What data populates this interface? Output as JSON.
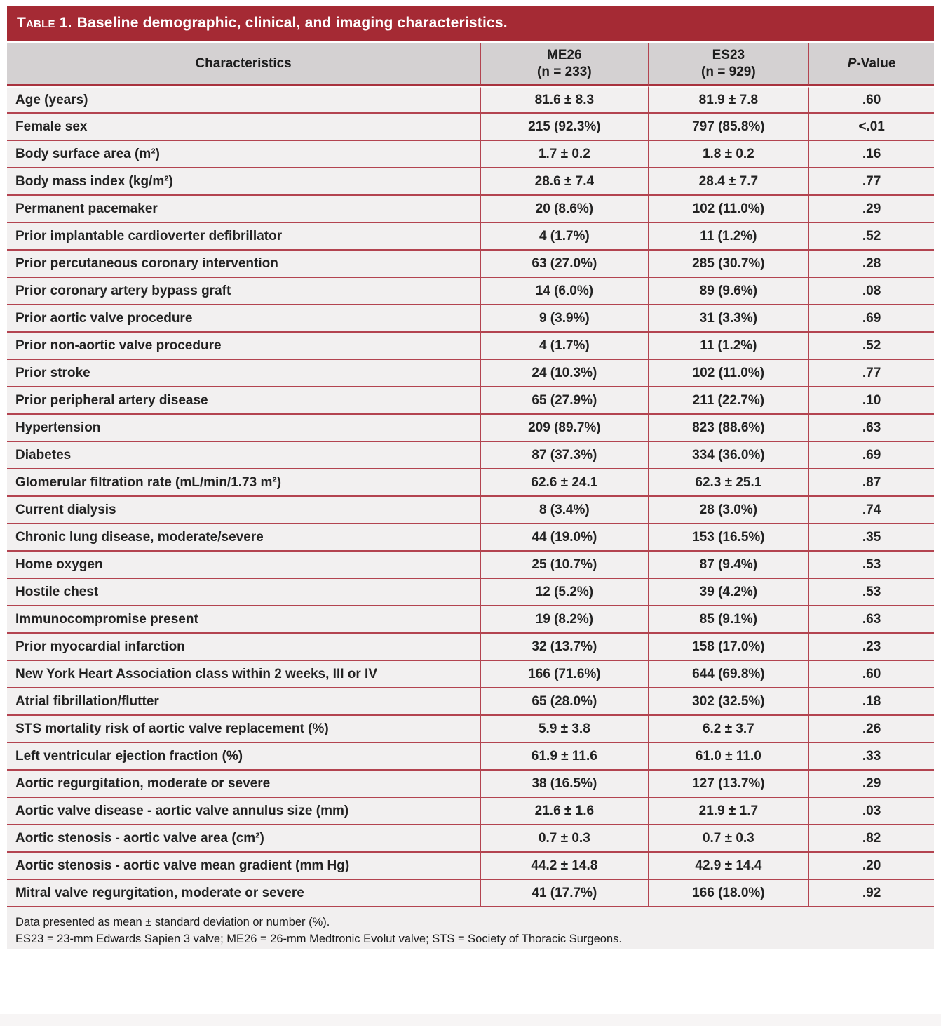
{
  "title": {
    "label": "Table 1.",
    "text": "Baseline demographic, clinical, and imaging characteristics."
  },
  "table": {
    "col_characteristics": "Characteristics",
    "col_me26_line1": "ME26",
    "col_me26_line2": "(n = 233)",
    "col_es23_line1": "ES23",
    "col_es23_line2": "(n = 929)",
    "col_p_italic": "P",
    "col_p_rest": "-Value",
    "rows": [
      {
        "label": "Age (years)",
        "me26": "81.6 ± 8.3",
        "es23": "81.9 ± 7.8",
        "p": ".60"
      },
      {
        "label": "Female sex",
        "me26": "215 (92.3%)",
        "es23": "797 (85.8%)",
        "p": "<.01"
      },
      {
        "label": "Body surface area (m²)",
        "me26": "1.7 ± 0.2",
        "es23": "1.8 ± 0.2",
        "p": ".16"
      },
      {
        "label": "Body mass index (kg/m²)",
        "me26": "28.6 ± 7.4",
        "es23": "28.4 ± 7.7",
        "p": ".77"
      },
      {
        "label": "Permanent pacemaker",
        "me26": "20 (8.6%)",
        "es23": "102 (11.0%)",
        "p": ".29"
      },
      {
        "label": "Prior implantable cardioverter defibrillator",
        "me26": "4 (1.7%)",
        "es23": "11 (1.2%)",
        "p": ".52"
      },
      {
        "label": "Prior percutaneous coronary intervention",
        "me26": "63 (27.0%)",
        "es23": "285 (30.7%)",
        "p": ".28"
      },
      {
        "label": "Prior coronary artery bypass graft",
        "me26": "14 (6.0%)",
        "es23": "89 (9.6%)",
        "p": ".08"
      },
      {
        "label": "Prior aortic valve procedure",
        "me26": "9 (3.9%)",
        "es23": "31 (3.3%)",
        "p": ".69"
      },
      {
        "label": "Prior non-aortic valve procedure",
        "me26": "4 (1.7%)",
        "es23": "11 (1.2%)",
        "p": ".52"
      },
      {
        "label": "Prior stroke",
        "me26": "24 (10.3%)",
        "es23": "102 (11.0%)",
        "p": ".77"
      },
      {
        "label": "Prior peripheral artery disease",
        "me26": "65 (27.9%)",
        "es23": "211 (22.7%)",
        "p": ".10"
      },
      {
        "label": "Hypertension",
        "me26": "209 (89.7%)",
        "es23": "823 (88.6%)",
        "p": ".63"
      },
      {
        "label": "Diabetes",
        "me26": "87 (37.3%)",
        "es23": "334 (36.0%)",
        "p": ".69"
      },
      {
        "label": "Glomerular filtration rate (mL/min/1.73 m²)",
        "me26": "62.6 ± 24.1",
        "es23": "62.3 ± 25.1",
        "p": ".87"
      },
      {
        "label": "Current dialysis",
        "me26": "8 (3.4%)",
        "es23": "28 (3.0%)",
        "p": ".74"
      },
      {
        "label": "Chronic lung disease, moderate/severe",
        "me26": "44 (19.0%)",
        "es23": "153 (16.5%)",
        "p": ".35"
      },
      {
        "label": "Home oxygen",
        "me26": "25 (10.7%)",
        "es23": "87 (9.4%)",
        "p": ".53"
      },
      {
        "label": "Hostile chest",
        "me26": "12 (5.2%)",
        "es23": "39 (4.2%)",
        "p": ".53"
      },
      {
        "label": "Immunocompromise present",
        "me26": "19 (8.2%)",
        "es23": "85 (9.1%)",
        "p": ".63"
      },
      {
        "label": "Prior myocardial infarction",
        "me26": "32 (13.7%)",
        "es23": "158 (17.0%)",
        "p": ".23"
      },
      {
        "label": "New York Heart Association class within 2 weeks, III or IV",
        "me26": "166 (71.6%)",
        "es23": "644 (69.8%)",
        "p": ".60"
      },
      {
        "label": "Atrial fibrillation/flutter",
        "me26": "65 (28.0%)",
        "es23": "302 (32.5%)",
        "p": ".18"
      },
      {
        "label": "STS mortality risk of aortic valve replacement (%)",
        "me26": "5.9 ± 3.8",
        "es23": "6.2 ± 3.7",
        "p": ".26"
      },
      {
        "label": "Left ventricular ejection fraction (%)",
        "me26": "61.9 ± 11.6",
        "es23": "61.0 ± 11.0",
        "p": ".33"
      },
      {
        "label": "Aortic regurgitation, moderate or severe",
        "me26": "38 (16.5%)",
        "es23": "127 (13.7%)",
        "p": ".29"
      },
      {
        "label": "Aortic valve disease - aortic valve annulus size (mm)",
        "me26": "21.6 ± 1.6",
        "es23": "21.9 ± 1.7",
        "p": ".03"
      },
      {
        "label": "Aortic stenosis - aortic valve area (cm²)",
        "me26": "0.7 ± 0.3",
        "es23": "0.7 ± 0.3",
        "p": ".82"
      },
      {
        "label": "Aortic stenosis - aortic valve mean gradient (mm Hg)",
        "me26": "44.2 ± 14.8",
        "es23": "42.9 ± 14.4",
        "p": ".20"
      },
      {
        "label": "Mitral valve regurgitation, moderate or severe",
        "me26": "41 (17.7%)",
        "es23": "166 (18.0%)",
        "p": ".92"
      }
    ]
  },
  "footnotes": {
    "line1": "Data presented as mean ± standard deviation or number (%).",
    "line2": "ES23 = 23-mm Edwards Sapien 3 valve; ME26 = 26-mm Medtronic Evolut valve; STS = Society of Thoracic Surgeons."
  },
  "colors": {
    "title_bar_red": "#A52A34",
    "border_red": "#B34450",
    "header_gray": "#D4D1D2",
    "row_bg": "#F2F0F0"
  }
}
